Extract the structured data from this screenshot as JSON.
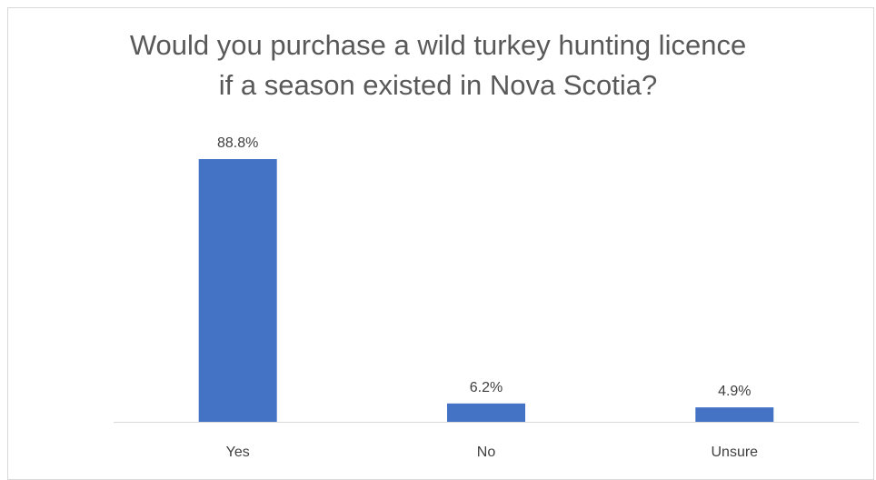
{
  "chart_data": {
    "type": "bar",
    "title_lines": [
      "Would you purchase a wild turkey hunting licence",
      "if a season existed in Nova Scotia?"
    ],
    "categories": [
      "Yes",
      "No",
      "Unsure"
    ],
    "values": [
      88.8,
      6.2,
      4.9
    ],
    "data_labels": [
      "88.8%",
      "6.2%",
      "4.9%"
    ],
    "xlabel": "",
    "ylabel": "",
    "ylim": [
      0,
      100
    ],
    "grid": false,
    "legend": "none",
    "colors": {
      "bar": "#4472C4",
      "axis": "#d9d9d9",
      "text": "#404040",
      "title": "#595959"
    }
  }
}
